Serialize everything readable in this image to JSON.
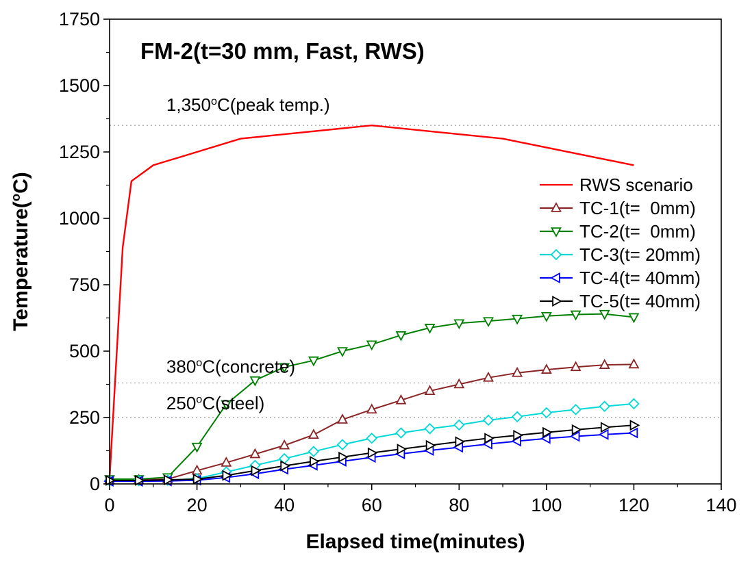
{
  "chart_data": {
    "type": "line",
    "title": "FM-2(t=30 mm, Fast, RWS)",
    "xlabel": "Elapsed time(minutes)",
    "ylabel": {
      "pre": "Temperature(",
      "sup": "o",
      "post": "C)"
    },
    "xlim": [
      0,
      140
    ],
    "ylim": [
      0,
      1750
    ],
    "xticks": [
      0,
      20,
      40,
      60,
      80,
      100,
      120,
      140
    ],
    "yticks": [
      0,
      250,
      500,
      750,
      1000,
      1250,
      1500,
      1750
    ],
    "x_minor_step": 10,
    "y_minor_step": 125,
    "grid": false,
    "legend_position": "right-center",
    "reference_lines": [
      {
        "y": 1350,
        "x_label": 13,
        "pre": "1,350",
        "sup": "o",
        "post": "C(peak temp.)",
        "dy": -21,
        "color": "#999999"
      },
      {
        "y": 380,
        "x_label": 13,
        "pre": "380",
        "sup": "o",
        "post": "C(concrete)",
        "dy": -15,
        "color": "#999999"
      },
      {
        "y": 250,
        "x_label": 13,
        "pre": "250",
        "sup": "o",
        "post": "C(steel)",
        "dy": -12,
        "color": "#999999"
      }
    ],
    "series": [
      {
        "name": "RWS scenario",
        "color": "#ff0000",
        "marker": "none",
        "x": [
          0,
          3,
          5,
          10,
          20,
          30,
          60,
          90,
          120
        ],
        "y": [
          20,
          890,
          1140,
          1200,
          1250,
          1300,
          1350,
          1300,
          1200
        ]
      },
      {
        "name": "TC-1(t=  0mm)",
        "color": "#8b2525",
        "marker": "triangle-up",
        "x": [
          0,
          6.7,
          13.3,
          20,
          26.7,
          33.3,
          40,
          46.7,
          53.3,
          60,
          66.7,
          73.3,
          80,
          86.7,
          93.3,
          100,
          106.7,
          113.3,
          120
        ],
        "y": [
          15,
          15,
          18,
          50,
          80,
          112,
          145,
          185,
          242,
          280,
          315,
          350,
          375,
          400,
          418,
          430,
          440,
          448,
          450
        ]
      },
      {
        "name": "TC-2(t=  0mm)",
        "color": "#008000",
        "marker": "triangle-down",
        "x": [
          0,
          6.7,
          13.3,
          20,
          26.7,
          33.3,
          40,
          46.7,
          53.3,
          60,
          66.7,
          73.3,
          80,
          86.7,
          93.3,
          100,
          106.7,
          113.3,
          120
        ],
        "y": [
          18,
          18,
          25,
          140,
          300,
          390,
          440,
          465,
          500,
          525,
          560,
          588,
          605,
          613,
          622,
          632,
          638,
          640,
          628
        ]
      },
      {
        "name": "TC-3(t= 20mm)",
        "color": "#00d8d8",
        "marker": "diamond",
        "x": [
          0,
          6.7,
          13.3,
          20,
          26.7,
          33.3,
          40,
          46.7,
          53.3,
          60,
          66.7,
          73.3,
          80,
          86.7,
          93.3,
          100,
          106.7,
          113.3,
          120
        ],
        "y": [
          12,
          12,
          14,
          20,
          45,
          70,
          95,
          122,
          148,
          172,
          192,
          208,
          222,
          240,
          253,
          268,
          280,
          292,
          302
        ]
      },
      {
        "name": "TC-4(t= 40mm)",
        "color": "#0000ff",
        "marker": "triangle-left",
        "x": [
          0,
          6.7,
          13.3,
          20,
          26.7,
          33.3,
          40,
          46.7,
          53.3,
          60,
          66.7,
          73.3,
          80,
          86.7,
          93.3,
          100,
          106.7,
          113.3,
          120
        ],
        "y": [
          10,
          10,
          11,
          14,
          24,
          38,
          55,
          70,
          85,
          100,
          113,
          126,
          138,
          150,
          161,
          171,
          179,
          186,
          192
        ]
      },
      {
        "name": "TC-5(t= 40mm)",
        "color": "#000000",
        "marker": "triangle-right",
        "x": [
          0,
          6.7,
          13.3,
          20,
          26.7,
          33.3,
          40,
          46.7,
          53.3,
          60,
          66.7,
          73.3,
          80,
          86.7,
          93.3,
          100,
          106.7,
          113.3,
          120
        ],
        "y": [
          13,
          13,
          15,
          18,
          32,
          50,
          68,
          85,
          101,
          117,
          131,
          145,
          159,
          172,
          183,
          194,
          204,
          213,
          221
        ]
      }
    ]
  }
}
